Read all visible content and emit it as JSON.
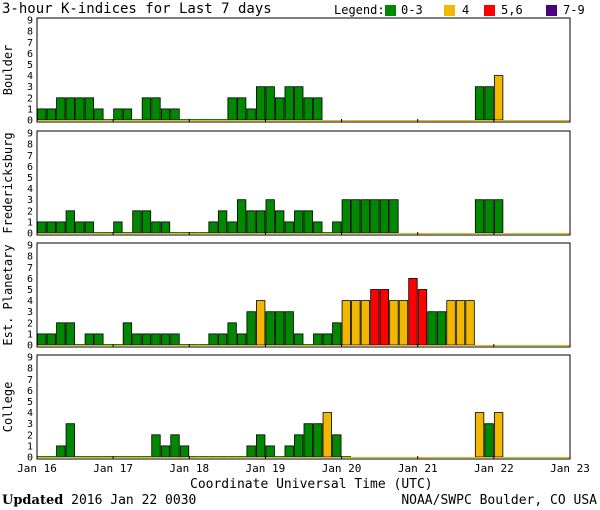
{
  "chart_data": {
    "type": "bar",
    "title": "3-hour K-indices for Last 7 days",
    "legend": {
      "label": "Legend:",
      "entries": [
        {
          "label": "0-3",
          "color": "#008800",
          "range": [
            0,
            3
          ]
        },
        {
          "label": "4",
          "color": "#f0b800",
          "range": [
            4,
            4
          ]
        },
        {
          "label": "5,6",
          "color": "#ff0000",
          "range": [
            5,
            6
          ]
        },
        {
          "label": "7-9",
          "color": "#4b0082",
          "range": [
            7,
            9
          ]
        }
      ]
    },
    "xlabel": "Coordinate Universal Time (UTC)",
    "x_ticks": [
      "Jan 16",
      "Jan 17",
      "Jan 18",
      "Jan 19",
      "Jan 20",
      "Jan 21",
      "Jan 22",
      "Jan 23"
    ],
    "y_ticks": [
      "0",
      "1",
      "2",
      "3",
      "4",
      "5",
      "6",
      "7",
      "8",
      "9"
    ],
    "ylim": [
      0,
      9
    ],
    "bars_per_day": 8,
    "series": [
      {
        "name": "Boulder",
        "values": [
          1,
          1,
          2,
          2,
          2,
          2,
          1,
          0,
          1,
          1,
          0,
          2,
          2,
          1,
          1,
          0,
          0,
          0,
          0,
          0,
          2,
          2,
          1,
          3,
          3,
          2,
          3,
          3,
          2,
          2,
          null,
          null,
          null,
          null,
          null,
          null,
          null,
          null,
          null,
          null,
          null,
          null,
          null,
          null,
          null,
          null,
          3,
          3,
          4,
          null,
          null,
          null,
          null,
          null,
          null,
          null
        ]
      },
      {
        "name": "Fredericksburg",
        "values": [
          1,
          1,
          1,
          2,
          1,
          1,
          0,
          0,
          1,
          0,
          2,
          2,
          1,
          1,
          0,
          0,
          0,
          0,
          1,
          2,
          1,
          3,
          2,
          2,
          3,
          2,
          1,
          2,
          2,
          1,
          0,
          1,
          3,
          3,
          3,
          3,
          3,
          3,
          null,
          null,
          null,
          null,
          null,
          null,
          null,
          null,
          3,
          3,
          3,
          null,
          null,
          null,
          null,
          null,
          null,
          null
        ]
      },
      {
        "name": "Est. Planetary",
        "values": [
          1,
          1,
          2,
          2,
          0,
          1,
          1,
          0,
          0,
          2,
          1,
          1,
          1,
          1,
          1,
          0,
          0,
          0,
          1,
          1,
          2,
          1,
          3,
          4,
          3,
          3,
          3,
          1,
          0,
          1,
          1,
          2,
          4,
          4,
          4,
          5,
          5,
          4,
          4,
          6,
          5,
          3,
          3,
          4,
          4,
          4,
          null,
          null,
          null,
          null,
          null,
          null,
          null,
          null,
          null,
          null
        ]
      },
      {
        "name": "College",
        "values": [
          0,
          0,
          1,
          3,
          0,
          0,
          0,
          0,
          0,
          0,
          0,
          0,
          2,
          1,
          2,
          1,
          0,
          0,
          0,
          0,
          0,
          0,
          1,
          2,
          1,
          0,
          1,
          2,
          3,
          3,
          4,
          2,
          0,
          null,
          null,
          null,
          null,
          null,
          null,
          null,
          null,
          null,
          null,
          null,
          null,
          null,
          4,
          3,
          4,
          null,
          null,
          null,
          null,
          null,
          null,
          null
        ]
      }
    ]
  },
  "footer": {
    "updated_label": "Updated",
    "updated_value": " 2016 Jan 22 0030",
    "credit": "NOAA/SWPC Boulder, CO USA"
  }
}
